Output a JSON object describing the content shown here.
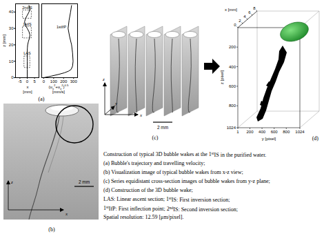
{
  "chart_data": {
    "type": "line",
    "label": "(a)",
    "ylabel": "z [mm]",
    "ylim": [
      0,
      45
    ],
    "yticks": [
      0,
      10,
      20,
      30,
      40
    ],
    "subplots": [
      {
        "xlabel": [
          "x",
          "[mm]"
        ],
        "xlim": [
          -8,
          8
        ],
        "xticks": [
          -5,
          0,
          5
        ],
        "series": [
          {
            "color": "#000000",
            "line_style": "solid",
            "x": [
              0,
              0,
              0,
              0,
              0.1,
              0.3,
              0.8,
              1.5,
              1.8,
              1.2,
              0,
              -1.2,
              -1.8,
              -1.2,
              0,
              1.2,
              1.8,
              1.2
            ],
            "z": [
              0,
              5,
              10,
              15,
              18,
              20,
              22,
              24,
              26,
              28,
              30,
              32,
              34,
              36,
              38,
              40,
              42,
              44
            ]
          }
        ],
        "regions": [
          {
            "label": "LAS",
            "xlim": [
              -2,
              2
            ],
            "zlim": [
              6,
              13
            ]
          },
          {
            "label": "1stIS",
            "xlim": [
              -3,
              3
            ],
            "zlim": [
              24,
              31
            ]
          },
          {
            "label": "2ndIS",
            "xlim": [
              -3,
              3
            ],
            "zlim": [
              36,
              41
            ]
          }
        ]
      },
      {
        "xlabel": [
          "(ux2+uz2)0.5",
          "[mm/s]"
        ],
        "xlim": [
          -20,
          340
        ],
        "xticks": [
          0,
          100,
          200,
          300
        ],
        "series": [
          {
            "color": "#000000",
            "line_style": "solid",
            "x": [
              0,
              80,
              150,
              210,
              250,
              275,
              290,
              295,
              290,
              280,
              260,
              245,
              255,
              270,
              280
            ],
            "z": [
              0,
              1,
              2,
              3,
              4,
              5,
              7,
              10,
              15,
              20,
              25,
              30,
              35,
              40,
              44
            ]
          }
        ],
        "annotations": [
          {
            "text": "1stIfP",
            "x": 240,
            "z": 31
          }
        ]
      }
    ]
  },
  "panel_b": {
    "label": "(b)",
    "scale_bar": "2 mm",
    "axes": [
      "z",
      "x"
    ]
  },
  "panel_c": {
    "label": "(c)",
    "scale_bar": "2 mm",
    "axes": [
      "z",
      "y",
      "x"
    ],
    "slices": 5
  },
  "panel_d": {
    "label": "(d)",
    "x_axis": {
      "label": "x [mm]",
      "lim": [
        0,
        8
      ],
      "ticks": [
        0,
        2,
        4,
        6,
        8
      ]
    },
    "y_axis": {
      "label": "y [pixel]",
      "lim": [
        1,
        1024
      ],
      "ticks": [
        1,
        200,
        400,
        600,
        800,
        1024
      ]
    },
    "z_axis": {
      "label": "z [pixel]",
      "lim": [
        1,
        1024
      ],
      "ticks": [
        200,
        400,
        600,
        800,
        1024
      ]
    }
  },
  "caption": [
    "Construction of typical 3D bubble wakes at the 1stIS in the purified water.",
    "(a) Bubble's trajectory and travelling velocity;",
    "(b) Visualization image of typical bubble wakes from x-z view;",
    "(c) Series equidistant cross-section images of bubble wakes from y-z plane;",
    "(d) Construction of the 3D bubble wake;",
    "LAS: Linear ascent section; 1stIS: First inversion section;",
    "1stIfP: First inflection point; 2ndIS: Second inversion section;",
    "Spatial resolution: 12.59 [μm/pixel]."
  ]
}
